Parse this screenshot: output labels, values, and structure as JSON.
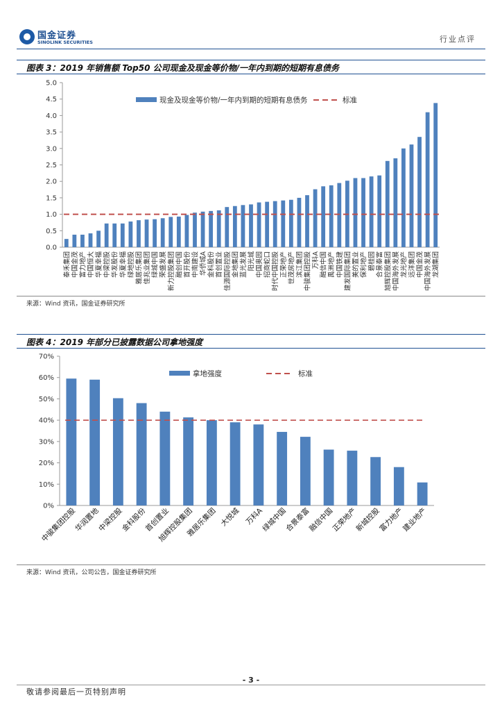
{
  "header": {
    "logo_cn": "国金证券",
    "logo_en": "SINOLINK SECURITIES",
    "category": "行业点评"
  },
  "figures": [
    {
      "title": "图表 3：2019 年销售额 Top50 公司现金及现金等价物/一年内到期的短期有息债务",
      "source": "来源：Wind 资讯，国金证券研究所"
    },
    {
      "title": "图表 4：2019 年部分已披露数据公司拿地强度",
      "source": "来源：Wind 资讯，公司公告，国金证券研究所"
    }
  ],
  "chart_data": [
    {
      "type": "bar",
      "title": "2019 年销售额 Top50 公司现金及现金等价物/一年内到期的短期有息债务",
      "series": [
        {
          "name": "现金及现金等价物/一年内到期的短期有息债务",
          "values": [
            0.25,
            0.38,
            0.38,
            0.42,
            0.5,
            0.72,
            0.72,
            0.72,
            0.78,
            0.82,
            0.84,
            0.85,
            0.88,
            0.92,
            0.93,
            0.98,
            1.05,
            1.08,
            1.1,
            1.12,
            1.22,
            1.25,
            1.28,
            1.3,
            1.36,
            1.38,
            1.4,
            1.42,
            1.44,
            1.5,
            1.58,
            1.76,
            1.85,
            1.88,
            1.95,
            2.02,
            2.1,
            2.1,
            2.15,
            2.18,
            2.62,
            2.7,
            3.0,
            3.12,
            3.35,
            4.1,
            4.38
          ]
        }
      ],
      "benchmark": {
        "name": "标准",
        "value": 1.0
      },
      "categories": [
        "泰禾集团",
        "中国金茂",
        "富力地产",
        "中国恒大",
        "华夏幸福",
        "中梁控股",
        "华发股份",
        "华夏幸福",
        "绿地控股",
        "雅居乐集团",
        "佳兆业集团",
        "绿城中国",
        "荣盛发展",
        "新力控股集团",
        "融创中国",
        "首开股份",
        "中南建设",
        "华侨城A",
        "金科股份",
        "首创置业",
        "佳源国际控股",
        "金地集团",
        "蓝光发展",
        "阳光城",
        "中国奥园",
        "招商蛇口",
        "时代中国控股",
        "正荣地产",
        "世茂房地产",
        "滨江集团",
        "中骏集团控股",
        "万科A",
        "融信中国",
        "禹洲地产",
        "中国铁建",
        "建发国际集团",
        "美的置业",
        "保利地产",
        "碧桂园",
        "合景泰富",
        "旭辉控股集团",
        "中国海外发展",
        "龙光地产",
        "远洋集团",
        "中国金茂",
        "中国海外发展",
        "龙湖集团"
      ],
      "ylim": [
        0,
        5.0
      ],
      "yticks": [
        "0.0",
        "0.5",
        "1.0",
        "1.5",
        "2.0",
        "2.5",
        "3.0",
        "3.5",
        "4.0",
        "4.5",
        "5.0"
      ],
      "legend_placement": "top"
    },
    {
      "type": "bar",
      "title": "2019 年部分已披露数据公司拿地强度",
      "categories": [
        "中骏集团控股",
        "华润置地",
        "中梁控股",
        "金科股份",
        "首创置业",
        "旭辉控股集团",
        "雅居乐集团",
        "大悦城",
        "万科A",
        "绿城中国",
        "合景泰富",
        "融信中国",
        "正荣地产",
        "新城控股",
        "富力地产",
        "建业地产"
      ],
      "series": [
        {
          "name": "拿地强度",
          "values": [
            59.5,
            59,
            50.3,
            48,
            44,
            41.3,
            40,
            39,
            38,
            34.5,
            32.2,
            26.2,
            25.7,
            22.7,
            18,
            10.8
          ]
        }
      ],
      "benchmark": {
        "name": "标准",
        "value": 40
      },
      "ylim": [
        0,
        70
      ],
      "yticks": [
        "0%",
        "10%",
        "20%",
        "30%",
        "40%",
        "50%",
        "60%",
        "70%"
      ],
      "legend_placement": "top"
    }
  ],
  "colors": {
    "bar": "#4f81bd",
    "benchmark": "#c0504d",
    "brand": "#1d4f91"
  },
  "page": {
    "number": "- 3 -"
  },
  "footer": {
    "note": "敬请参阅最后一页特别声明"
  }
}
